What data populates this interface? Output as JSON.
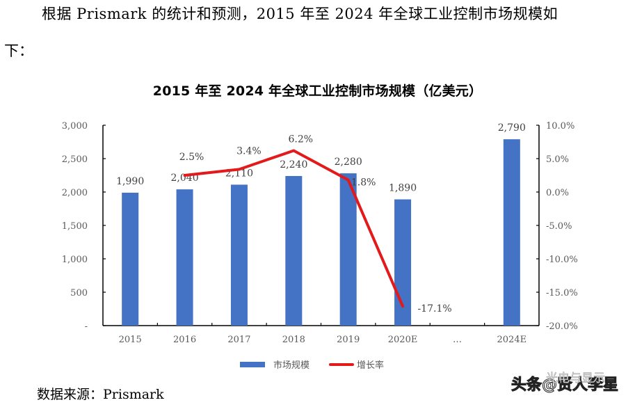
{
  "intro": {
    "line1": "根据 Prismark 的统计和预测，2015 年至 2024 年全球工业控制市场规模如",
    "line2": "下："
  },
  "chart_data": {
    "type": "bar+line",
    "title": "2015 年至 2024 年全球工业控制市场规模（亿美元）",
    "categories": [
      "2015",
      "2016",
      "2017",
      "2018",
      "2019",
      "2020E",
      "…",
      "2024E"
    ],
    "series": [
      {
        "name": "市场规模",
        "type": "bar",
        "axis": "left",
        "color": "#4472C4",
        "values": [
          1990,
          2040,
          2110,
          2240,
          2280,
          1890,
          null,
          2790
        ],
        "labels": [
          "1,990",
          "2,040",
          "2,110",
          "2,240",
          "2,280",
          "1,890",
          "",
          "2,790"
        ]
      },
      {
        "name": "增长率",
        "type": "line",
        "axis": "right",
        "color": "#E31A1C",
        "values": [
          null,
          2.5,
          3.4,
          6.2,
          1.8,
          -17.1,
          null,
          null
        ],
        "labels": [
          "",
          "2.5%",
          "3.4%",
          "6.2%",
          "1.8%",
          "-17.1%",
          "",
          ""
        ]
      }
    ],
    "left_axis": {
      "ylim": [
        0,
        3000
      ],
      "ticks": [
        "-",
        "500",
        "1,000",
        "1,500",
        "2,000",
        "2,500",
        "3,000"
      ]
    },
    "right_axis": {
      "ylim": [
        -20,
        10
      ],
      "ticks": [
        "-20.0%",
        "-15.0%",
        "-10.0%",
        "-5.0%",
        "0.0%",
        "5.0%",
        "10.0%"
      ]
    },
    "xlabel": "",
    "ylabel": "",
    "grid": false,
    "legend_position": "bottom"
  },
  "legend": {
    "bar": "市场规模",
    "line": "增长率"
  },
  "source": "数据来源：Prismark",
  "watermark": {
    "main": "头条@贤人李星",
    "sub": "光电与显示"
  }
}
